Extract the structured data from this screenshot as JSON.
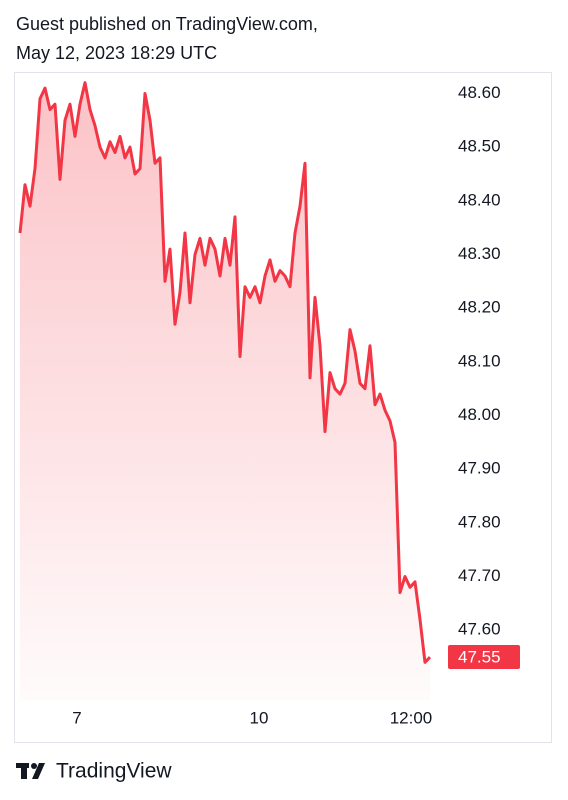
{
  "header": {
    "line1": "Guest published on TradingView.com,",
    "line2": "May 12, 2023 18:29 UTC"
  },
  "chart_data": {
    "type": "area",
    "color": "#f23645",
    "x": [
      0,
      1,
      2,
      3,
      4,
      5,
      6,
      7,
      8,
      9,
      10,
      11,
      12,
      13,
      14,
      15,
      16,
      17,
      18,
      19,
      20,
      21,
      22,
      23,
      24,
      25,
      26,
      27,
      28,
      29,
      30,
      31,
      32,
      33,
      34,
      35,
      36,
      37,
      38,
      39,
      40,
      41,
      42,
      43,
      44,
      45,
      46,
      47,
      48,
      49,
      50,
      51,
      52,
      53,
      54,
      55,
      56,
      57,
      58,
      59,
      60,
      61,
      62,
      63,
      64,
      65,
      66,
      67,
      68,
      69,
      70,
      71,
      72,
      73,
      74,
      75,
      76,
      77,
      78,
      79,
      80,
      81,
      82
    ],
    "values": [
      48.34,
      48.43,
      48.39,
      48.46,
      48.59,
      48.61,
      48.57,
      48.58,
      48.44,
      48.55,
      48.58,
      48.52,
      48.58,
      48.62,
      48.57,
      48.54,
      48.5,
      48.48,
      48.51,
      48.49,
      48.52,
      48.48,
      48.5,
      48.45,
      48.46,
      48.6,
      48.55,
      48.47,
      48.48,
      48.25,
      48.31,
      48.17,
      48.23,
      48.34,
      48.21,
      48.3,
      48.33,
      48.28,
      48.33,
      48.31,
      48.26,
      48.33,
      48.28,
      48.37,
      48.11,
      48.24,
      48.22,
      48.24,
      48.21,
      48.26,
      48.29,
      48.25,
      48.27,
      48.26,
      48.24,
      48.34,
      48.39,
      48.47,
      48.07,
      48.22,
      48.13,
      47.97,
      48.08,
      48.05,
      48.04,
      48.06,
      48.16,
      48.12,
      48.06,
      48.05,
      48.13,
      48.02,
      48.04,
      48.01,
      47.99,
      47.95,
      47.67,
      47.7,
      47.68,
      47.69,
      47.62,
      47.54,
      47.55
    ],
    "last_price": 47.55,
    "xlim": [
      -1,
      84
    ],
    "xticks": [
      {
        "value": 11.4,
        "label": "7"
      },
      {
        "value": 47.8,
        "label": "10"
      },
      {
        "value": 78.2,
        "label": "12:00"
      }
    ],
    "ylim": [
      47.47,
      48.64
    ],
    "yticks": [
      {
        "value": 48.6,
        "label": "48.60"
      },
      {
        "value": 48.5,
        "label": "48.50"
      },
      {
        "value": 48.4,
        "label": "48.40"
      },
      {
        "value": 48.3,
        "label": "48.30"
      },
      {
        "value": 48.2,
        "label": "48.20"
      },
      {
        "value": 48.1,
        "label": "48.10"
      },
      {
        "value": 48.0,
        "label": "48.00"
      },
      {
        "value": 47.9,
        "label": "47.90"
      },
      {
        "value": 47.8,
        "label": "47.80"
      },
      {
        "value": 47.7,
        "label": "47.70"
      },
      {
        "value": 47.6,
        "label": "47.60"
      }
    ]
  },
  "footer": {
    "brand": "TradingView"
  }
}
